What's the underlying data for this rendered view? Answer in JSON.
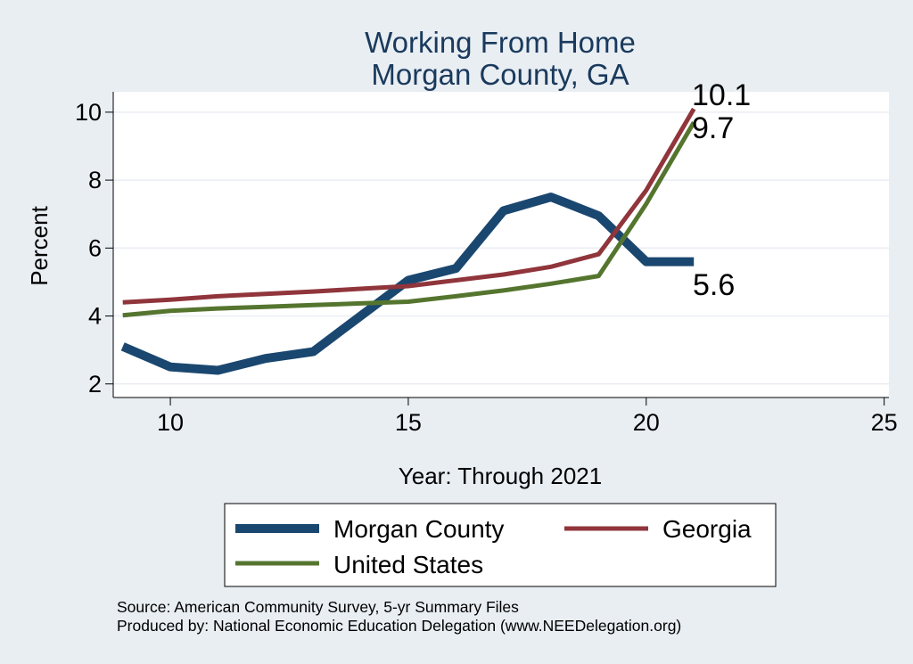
{
  "chart_data": {
    "type": "line",
    "title": [
      "Working From Home",
      "Morgan County, GA"
    ],
    "xlabel": "Year: Through 2021",
    "ylabel": "Percent",
    "xlim": [
      8.8,
      25.1
    ],
    "ylim": [
      1.6,
      10.6
    ],
    "xticks": [
      10,
      15,
      20,
      25
    ],
    "yticks": [
      2,
      4,
      6,
      8,
      10
    ],
    "grid": true,
    "legend_position": "bottom",
    "series": [
      {
        "name": "Morgan County",
        "color": "#1a476f",
        "x": [
          9,
          10,
          11,
          12,
          13,
          14,
          15,
          16,
          17,
          18,
          19,
          20,
          21
        ],
        "y": [
          3.1,
          2.5,
          2.4,
          2.75,
          2.95,
          4.0,
          5.05,
          5.4,
          7.1,
          7.5,
          6.95,
          5.6,
          5.6
        ],
        "end_label": "5.6"
      },
      {
        "name": "Georgia",
        "color": "#90353b",
        "x": [
          9,
          10,
          11,
          12,
          13,
          14,
          15,
          16,
          17,
          18,
          19,
          20,
          21
        ],
        "y": [
          4.4,
          4.48,
          4.58,
          4.65,
          4.72,
          4.8,
          4.88,
          5.05,
          5.22,
          5.45,
          5.82,
          7.7,
          10.1
        ],
        "end_label": "10.1"
      },
      {
        "name": "United States",
        "color": "#55752f",
        "x": [
          9,
          10,
          11,
          12,
          13,
          14,
          15,
          16,
          17,
          18,
          19,
          20,
          21
        ],
        "y": [
          4.02,
          4.15,
          4.22,
          4.27,
          4.32,
          4.37,
          4.42,
          4.58,
          4.75,
          4.95,
          5.18,
          7.3,
          9.7
        ],
        "end_label": "9.7"
      }
    ],
    "notes": [
      "Source: American Community Survey, 5-yr Summary Files",
      "Produced by: National Economic Education Delegation (www.NEEDelegation.org)"
    ]
  }
}
